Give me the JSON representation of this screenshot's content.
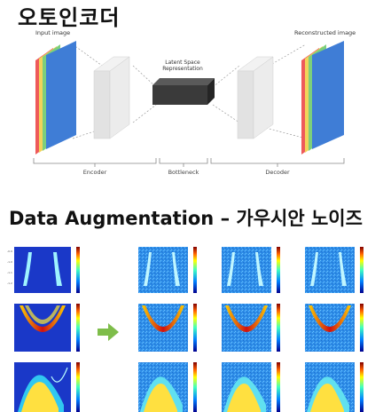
{
  "title": "오토인코더",
  "diagram": {
    "input_label": "Input image",
    "output_label": "Reconstructed image",
    "latent_line1": "Latent Space",
    "latent_line2": "Representation",
    "encoder_label": "Encoder",
    "bottleneck_label": "Bottleneck",
    "decoder_label": "Decoder",
    "colors": {
      "red": "#ee5a5a",
      "yellow": "#f2d35a",
      "green": "#7ccf7c",
      "blue": "#3f7dd6",
      "gray_box": "#e4e4e4",
      "latent": "#3a3a3a"
    }
  },
  "augmentation": {
    "title": "Data Augmentation – 가우시안 노이즈",
    "arrow_color": "#7ebd4a",
    "originals": [
      "panel-1",
      "panel-2",
      "panel-3"
    ],
    "noisy_columns": 3
  }
}
